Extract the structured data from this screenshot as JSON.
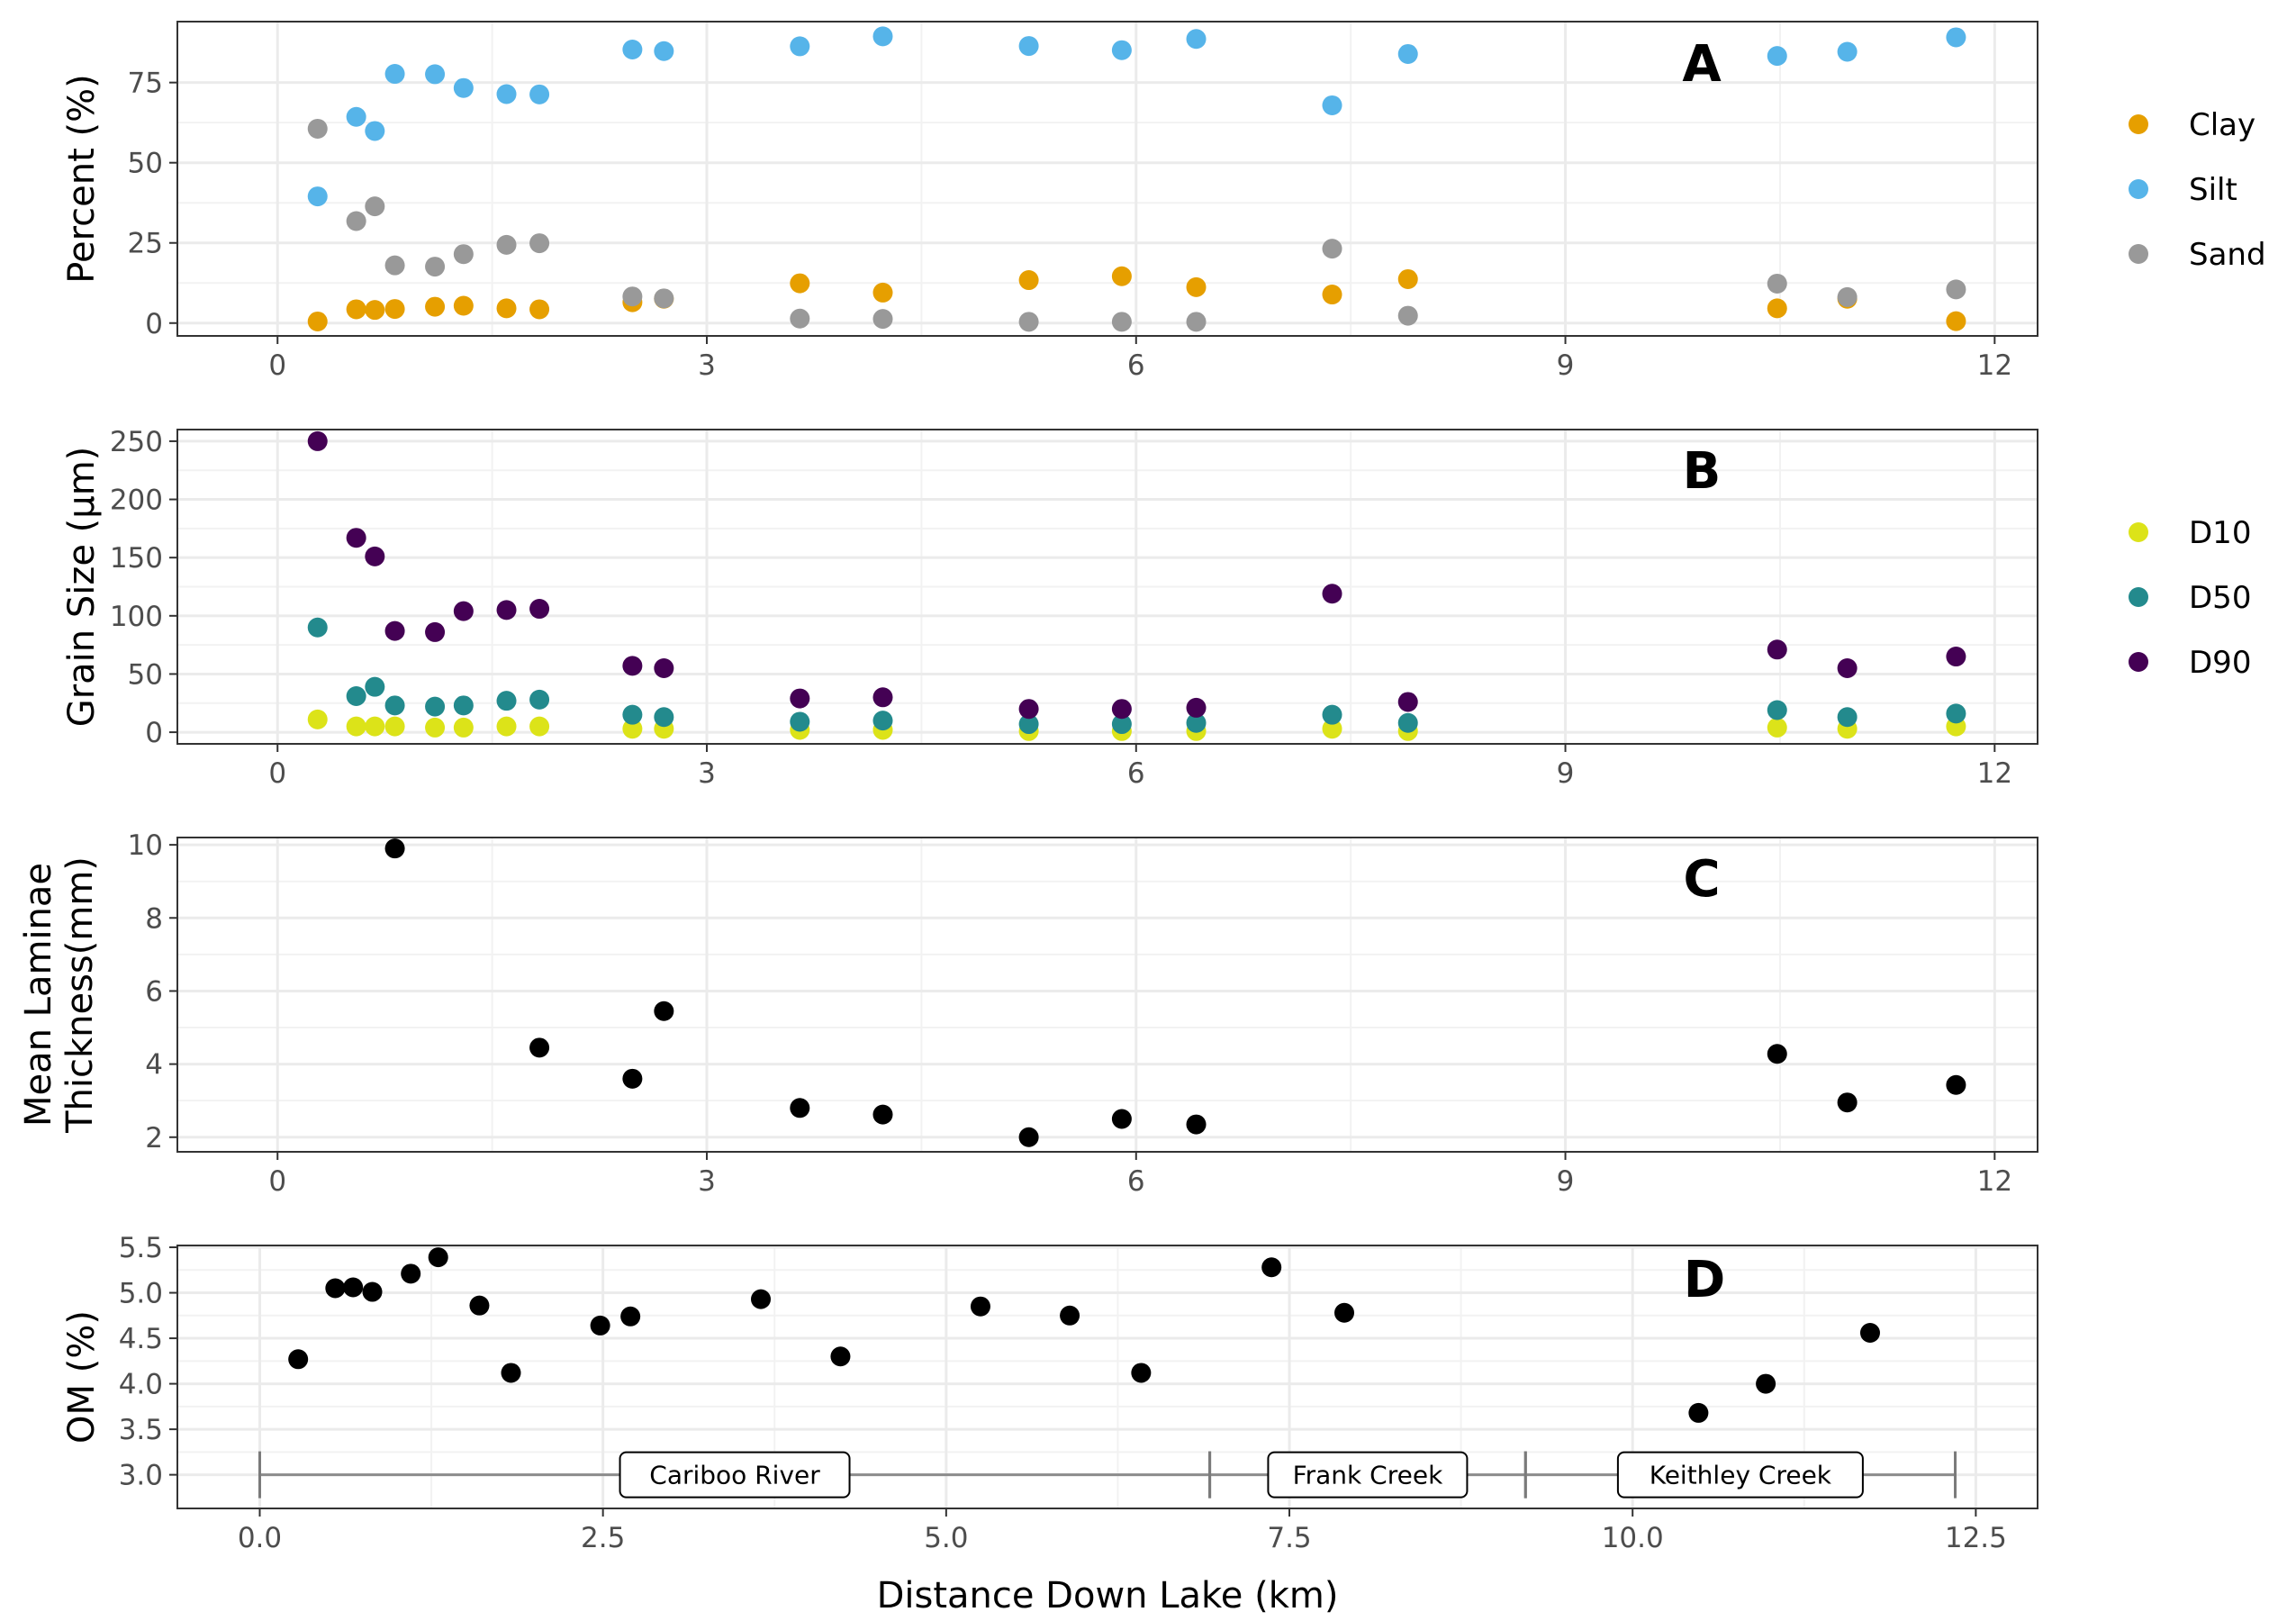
{
  "chart_data": [
    {
      "panel": "A",
      "type": "scatter",
      "title": "",
      "xlabel": "",
      "ylabel": "Percent (%)",
      "xlim": [
        -0.7,
        12.3
      ],
      "ylim": [
        -4,
        94
      ],
      "x_ticks": [
        0,
        3,
        6,
        9,
        12
      ],
      "y_ticks": [
        0,
        25,
        50,
        75
      ],
      "grid": true,
      "legend_position": "right",
      "series": [
        {
          "name": "Clay",
          "color": "#E69F00",
          "points": [
            [
              0.28,
              0.5
            ],
            [
              0.55,
              4.3
            ],
            [
              0.68,
              4.1
            ],
            [
              0.82,
              4.4
            ],
            [
              1.1,
              5.1
            ],
            [
              1.3,
              5.4
            ],
            [
              1.6,
              4.6
            ],
            [
              1.83,
              4.3
            ],
            [
              2.48,
              6.5
            ],
            [
              2.7,
              7.6
            ],
            [
              3.65,
              12.4
            ],
            [
              4.23,
              9.5
            ],
            [
              5.25,
              13.4
            ],
            [
              5.9,
              14.6
            ],
            [
              6.42,
              11.2
            ],
            [
              7.37,
              8.9
            ],
            [
              7.9,
              13.7
            ],
            [
              10.48,
              4.6
            ],
            [
              10.97,
              7.6
            ],
            [
              11.73,
              0.6
            ]
          ]
        },
        {
          "name": "Silt",
          "color": "#56B4E9",
          "points": [
            [
              0.28,
              39.5
            ],
            [
              0.55,
              64.3
            ],
            [
              0.68,
              59.9
            ],
            [
              0.82,
              77.7
            ],
            [
              1.1,
              77.6
            ],
            [
              1.3,
              73.3
            ],
            [
              1.6,
              71.4
            ],
            [
              1.83,
              71.3
            ],
            [
              2.48,
              85.3
            ],
            [
              2.7,
              84.8
            ],
            [
              3.65,
              86.3
            ],
            [
              4.23,
              89.4
            ],
            [
              5.25,
              86.4
            ],
            [
              5.9,
              85.1
            ],
            [
              6.42,
              88.6
            ],
            [
              7.37,
              67.9
            ],
            [
              7.9,
              83.9
            ],
            [
              10.48,
              83.3
            ],
            [
              10.97,
              84.6
            ],
            [
              11.73,
              89.1
            ]
          ]
        },
        {
          "name": "Sand",
          "color": "#999999",
          "points": [
            [
              0.28,
              60.6
            ],
            [
              0.55,
              31.8
            ],
            [
              0.68,
              36.4
            ],
            [
              0.82,
              18.0
            ],
            [
              1.1,
              17.6
            ],
            [
              1.3,
              21.5
            ],
            [
              1.6,
              24.4
            ],
            [
              1.83,
              24.9
            ],
            [
              2.48,
              8.3
            ],
            [
              2.7,
              7.7
            ],
            [
              3.65,
              1.4
            ],
            [
              4.23,
              1.3
            ],
            [
              5.25,
              0.4
            ],
            [
              5.9,
              0.4
            ],
            [
              6.42,
              0.4
            ],
            [
              7.37,
              23.2
            ],
            [
              7.9,
              2.3
            ],
            [
              10.48,
              12.3
            ],
            [
              10.97,
              8.1
            ],
            [
              11.73,
              10.5
            ]
          ]
        }
      ]
    },
    {
      "panel": "B",
      "type": "scatter",
      "title": "",
      "xlabel": "",
      "ylabel": "Grain Size (µm)",
      "xlim": [
        -0.7,
        12.3
      ],
      "ylim": [
        -10,
        260
      ],
      "x_ticks": [
        0,
        3,
        6,
        9,
        12
      ],
      "y_ticks": [
        0,
        50,
        100,
        150,
        200,
        250
      ],
      "grid": true,
      "legend_position": "right",
      "series": [
        {
          "name": "D10",
          "color": "#DCE319",
          "points": [
            [
              0.28,
              11
            ],
            [
              0.55,
              5
            ],
            [
              0.68,
              5
            ],
            [
              0.82,
              5
            ],
            [
              1.1,
              4
            ],
            [
              1.3,
              4
            ],
            [
              1.6,
              5
            ],
            [
              1.83,
              5
            ],
            [
              2.48,
              3
            ],
            [
              2.7,
              3
            ],
            [
              3.65,
              2
            ],
            [
              4.23,
              2
            ],
            [
              5.25,
              1
            ],
            [
              5.9,
              1
            ],
            [
              6.42,
              1
            ],
            [
              7.37,
              3
            ],
            [
              7.9,
              1
            ],
            [
              10.48,
              4
            ],
            [
              10.97,
              3
            ],
            [
              11.73,
              5
            ]
          ]
        },
        {
          "name": "D50",
          "color": "#238A8D",
          "points": [
            [
              0.28,
              90
            ],
            [
              0.55,
              31
            ],
            [
              0.68,
              39
            ],
            [
              0.82,
              23
            ],
            [
              1.1,
              22
            ],
            [
              1.3,
              23
            ],
            [
              1.6,
              27
            ],
            [
              1.83,
              28
            ],
            [
              2.48,
              15
            ],
            [
              2.7,
              13
            ],
            [
              3.65,
              9
            ],
            [
              4.23,
              10
            ],
            [
              5.25,
              7
            ],
            [
              5.9,
              7
            ],
            [
              6.42,
              8
            ],
            [
              7.37,
              15
            ],
            [
              7.9,
              8
            ],
            [
              10.48,
              19
            ],
            [
              10.97,
              13
            ],
            [
              11.73,
              16
            ]
          ]
        },
        {
          "name": "D90",
          "color": "#440154",
          "points": [
            [
              0.28,
              250
            ],
            [
              0.55,
              167
            ],
            [
              0.68,
              151
            ],
            [
              0.82,
              87
            ],
            [
              1.1,
              86
            ],
            [
              1.3,
              104
            ],
            [
              1.6,
              105
            ],
            [
              1.83,
              106
            ],
            [
              2.48,
              57
            ],
            [
              2.7,
              55
            ],
            [
              3.65,
              29
            ],
            [
              4.23,
              30
            ],
            [
              5.25,
              20
            ],
            [
              5.9,
              20
            ],
            [
              6.42,
              21
            ],
            [
              7.37,
              119
            ],
            [
              7.9,
              26
            ],
            [
              10.48,
              71
            ],
            [
              10.97,
              55
            ],
            [
              11.73,
              65
            ]
          ]
        }
      ]
    },
    {
      "panel": "C",
      "type": "scatter",
      "title": "",
      "xlabel": "",
      "ylabel": [
        "Mean Laminae",
        "Thickness(mm)"
      ],
      "xlim": [
        -0.7,
        12.3
      ],
      "ylim": [
        1.6,
        10.2
      ],
      "x_ticks": [
        0,
        3,
        6,
        9,
        12
      ],
      "y_ticks": [
        2,
        4,
        6,
        8,
        10
      ],
      "grid": true,
      "series": [
        {
          "color": "#000000",
          "points": [
            [
              0.82,
              9.9
            ],
            [
              1.83,
              4.45
            ],
            [
              2.48,
              3.6
            ],
            [
              2.7,
              5.45
            ],
            [
              3.65,
              2.8
            ],
            [
              4.23,
              2.62
            ],
            [
              5.25,
              2.0
            ],
            [
              5.9,
              2.5
            ],
            [
              6.42,
              2.35
            ],
            [
              10.48,
              4.28
            ],
            [
              10.97,
              2.95
            ],
            [
              11.73,
              3.43
            ]
          ]
        }
      ]
    },
    {
      "panel": "D",
      "type": "scatter",
      "title": "",
      "xlabel": "Distance Down Lake (km)",
      "ylabel": "OM (%)",
      "xlim": [
        -0.6,
        12.95
      ],
      "ylim": [
        2.63,
        5.52
      ],
      "x_ticks": [
        0.0,
        2.5,
        5.0,
        7.5,
        10.0,
        12.5
      ],
      "x_tick_labels": [
        "0.0",
        "2.5",
        "5.0",
        "7.5",
        "10.0",
        "12.5"
      ],
      "y_ticks": [
        3.0,
        3.5,
        4.0,
        4.5,
        5.0,
        5.5
      ],
      "y_tick_labels": [
        "3.0",
        "3.5",
        "4.0",
        "4.5",
        "5.0",
        "5.5"
      ],
      "grid": true,
      "series": [
        {
          "color": "#000000",
          "points": [
            [
              0.28,
              4.27
            ],
            [
              0.55,
              5.05
            ],
            [
              0.68,
              5.06
            ],
            [
              0.82,
              5.01
            ],
            [
              1.1,
              5.21
            ],
            [
              1.3,
              5.39
            ],
            [
              1.6,
              4.86
            ],
            [
              1.83,
              4.12
            ],
            [
              2.48,
              4.64
            ],
            [
              2.7,
              4.74
            ],
            [
              3.65,
              4.93
            ],
            [
              4.23,
              4.3
            ],
            [
              5.25,
              4.85
            ],
            [
              5.9,
              4.75
            ],
            [
              6.42,
              4.12
            ],
            [
              7.37,
              5.28
            ],
            [
              7.9,
              4.78
            ],
            [
              10.48,
              3.68
            ],
            [
              10.97,
              4.0
            ],
            [
              11.73,
              4.56
            ]
          ]
        }
      ],
      "segments": [
        {
          "label": "Cariboo River",
          "start": 0.0,
          "end": 6.92,
          "y": 3.0
        },
        {
          "label": "Frank Creek",
          "start": 6.92,
          "end": 9.22,
          "y": 3.0
        },
        {
          "label": "Keithley Creek",
          "start": 9.22,
          "end": 12.35,
          "y": 3.0
        }
      ]
    }
  ]
}
